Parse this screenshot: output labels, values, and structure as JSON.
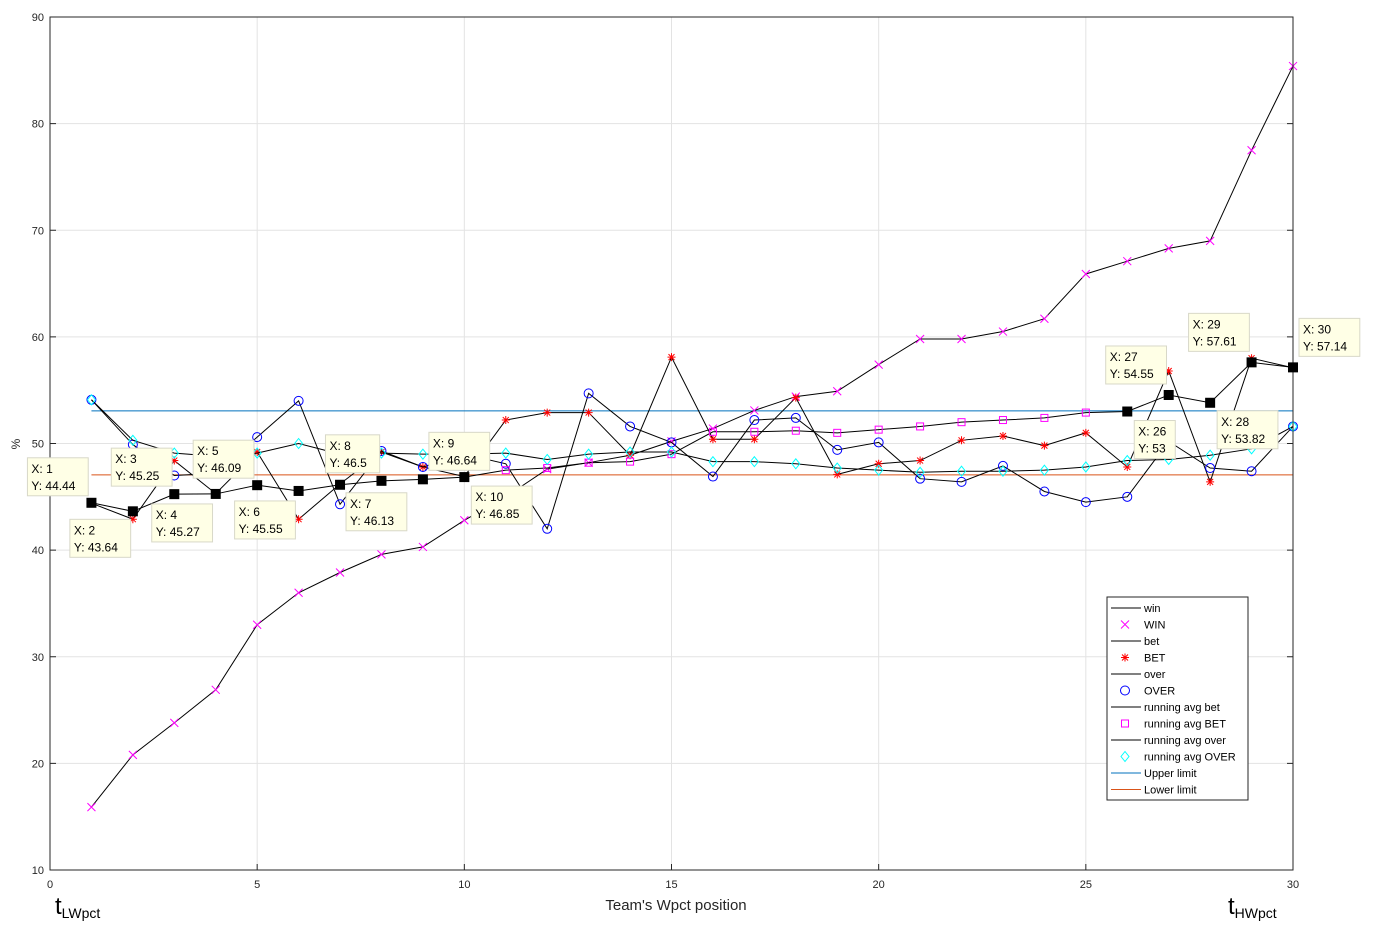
{
  "chart_data": {
    "type": "line",
    "xlabel": "Team's Wpct position",
    "ylabel": "%",
    "xlim": [
      0,
      30
    ],
    "ylim": [
      10,
      90
    ],
    "xticks": [
      0,
      5,
      10,
      15,
      20,
      25,
      30
    ],
    "yticks": [
      10,
      20,
      30,
      40,
      50,
      60,
      70,
      80,
      90
    ],
    "grid": true,
    "legend_position": "bottom-right",
    "corner_left": {
      "main": "t",
      "sub": "LWpct"
    },
    "corner_right": {
      "main": "t",
      "sub": "HWpct"
    },
    "x": [
      1,
      2,
      3,
      4,
      5,
      6,
      7,
      8,
      9,
      10,
      11,
      12,
      13,
      14,
      15,
      16,
      17,
      18,
      19,
      20,
      21,
      22,
      23,
      24,
      25,
      26,
      27,
      28,
      29,
      30
    ],
    "series": [
      {
        "name": "WIN",
        "line_label": "win",
        "marker": "x",
        "color": "#ff00ff",
        "values": [
          15.9,
          20.8,
          23.8,
          26.9,
          33.0,
          36.0,
          37.9,
          39.6,
          40.3,
          42.8,
          45.0,
          47.6,
          48.2,
          48.9,
          50.2,
          51.4,
          53.1,
          54.4,
          54.9,
          57.4,
          59.8,
          59.8,
          60.5,
          61.7,
          65.9,
          67.1,
          68.3,
          69.0,
          77.5,
          85.4
        ]
      },
      {
        "name": "BET",
        "line_label": "bet",
        "marker": "asterisk",
        "color": "#ff0000",
        "values": [
          44.4,
          42.9,
          48.4,
          45.3,
          49.2,
          42.9,
          46.2,
          49.2,
          47.8,
          46.9,
          52.2,
          52.9,
          52.9,
          48.9,
          58.1,
          50.4,
          50.4,
          54.3,
          47.1,
          48.1,
          48.4,
          50.3,
          50.7,
          49.8,
          51.0,
          47.8,
          56.8,
          46.4,
          58.0,
          57.1
        ]
      },
      {
        "name": "OVER",
        "line_label": "over",
        "marker": "circle",
        "color": "#0000ff",
        "values": [
          54.1,
          49.9,
          47.0,
          47.2,
          50.6,
          54.0,
          44.3,
          49.3,
          47.8,
          49.0,
          48.1,
          42.0,
          54.7,
          51.6,
          50.1,
          46.9,
          52.2,
          52.4,
          49.4,
          50.1,
          46.7,
          46.4,
          47.9,
          45.5,
          44.5,
          45.0,
          50.2,
          47.7,
          47.4,
          51.6
        ]
      },
      {
        "name": "running avg BET",
        "line_label": "running avg bet",
        "marker": "square",
        "color": "#ff00ff",
        "values": [
          44.44,
          43.64,
          45.25,
          45.27,
          46.09,
          45.55,
          46.13,
          46.5,
          46.64,
          46.85,
          47.5,
          47.7,
          48.2,
          48.3,
          49.0,
          51.1,
          51.1,
          51.2,
          51.0,
          51.3,
          51.6,
          52.0,
          52.2,
          52.4,
          52.9,
          53.0,
          54.55,
          53.82,
          57.61,
          57.14
        ]
      },
      {
        "name": "running avg OVER",
        "line_label": "running avg over",
        "marker": "diamond",
        "color": "#00ffff",
        "values": [
          54.1,
          50.3,
          49.1,
          48.8,
          49.1,
          50.0,
          49.0,
          49.1,
          49.0,
          49.0,
          49.1,
          48.5,
          49.0,
          49.2,
          49.2,
          48.3,
          48.3,
          48.1,
          47.7,
          47.5,
          47.3,
          47.4,
          47.4,
          47.5,
          47.8,
          48.4,
          48.5,
          48.9,
          49.5,
          51.6
        ]
      }
    ],
    "limits": [
      {
        "name": "Upper limit",
        "value": 53.06,
        "color": "#0072bd"
      },
      {
        "name": "Lower limit",
        "value": 47.06,
        "color": "#d95319"
      }
    ],
    "datatips": [
      {
        "x": 1,
        "y": 44.44,
        "lx": "X: 1",
        "ly": "Y: 44.44"
      },
      {
        "x": 2,
        "y": 43.64,
        "lx": "X: 2",
        "ly": "Y: 43.64"
      },
      {
        "x": 3,
        "y": 45.25,
        "lx": "X: 3",
        "ly": "Y: 45.25"
      },
      {
        "x": 4,
        "y": 45.27,
        "lx": "X: 4",
        "ly": "Y: 45.27"
      },
      {
        "x": 5,
        "y": 46.09,
        "lx": "X: 5",
        "ly": "Y: 46.09"
      },
      {
        "x": 6,
        "y": 45.55,
        "lx": "X: 6",
        "ly": "Y: 45.55"
      },
      {
        "x": 7,
        "y": 46.13,
        "lx": "X: 7",
        "ly": "Y: 46.13"
      },
      {
        "x": 8,
        "y": 46.5,
        "lx": "X: 8",
        "ly": "Y: 46.5"
      },
      {
        "x": 9,
        "y": 46.64,
        "lx": "X: 9",
        "ly": "Y: 46.64"
      },
      {
        "x": 10,
        "y": 46.85,
        "lx": "X: 10",
        "ly": "Y: 46.85"
      },
      {
        "x": 26,
        "y": 53,
        "lx": "X: 26",
        "ly": "Y: 53"
      },
      {
        "x": 27,
        "y": 54.55,
        "lx": "X: 27",
        "ly": "Y: 54.55"
      },
      {
        "x": 28,
        "y": 53.82,
        "lx": "X: 28",
        "ly": "Y: 53.82"
      },
      {
        "x": 29,
        "y": 57.61,
        "lx": "X: 29",
        "ly": "Y: 57.61"
      },
      {
        "x": 30,
        "y": 57.14,
        "lx": "X: 30",
        "ly": "Y: 57.14"
      }
    ]
  }
}
